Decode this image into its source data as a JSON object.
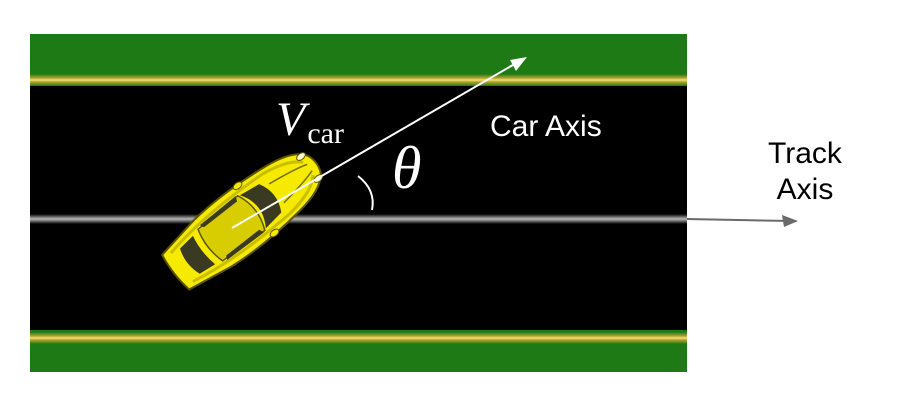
{
  "labels": {
    "velocity_symbol": "V",
    "velocity_subscript": "car",
    "angle_symbol": "θ",
    "car_axis": "Car Axis",
    "track_axis": "Track Axis"
  },
  "colors": {
    "grass": "#1d7a14",
    "track_edge_line": "#e8c840",
    "road": "#000000",
    "center_line": "#9a9a9a",
    "car_body": "#f5ea00",
    "car_glass": "#3a3a22",
    "arrow_white": "#ffffff",
    "arrow_gray": "#6a6a6a"
  },
  "icons": {
    "car": "top-down-car-icon",
    "arrow_head": "arrowhead-icon"
  }
}
